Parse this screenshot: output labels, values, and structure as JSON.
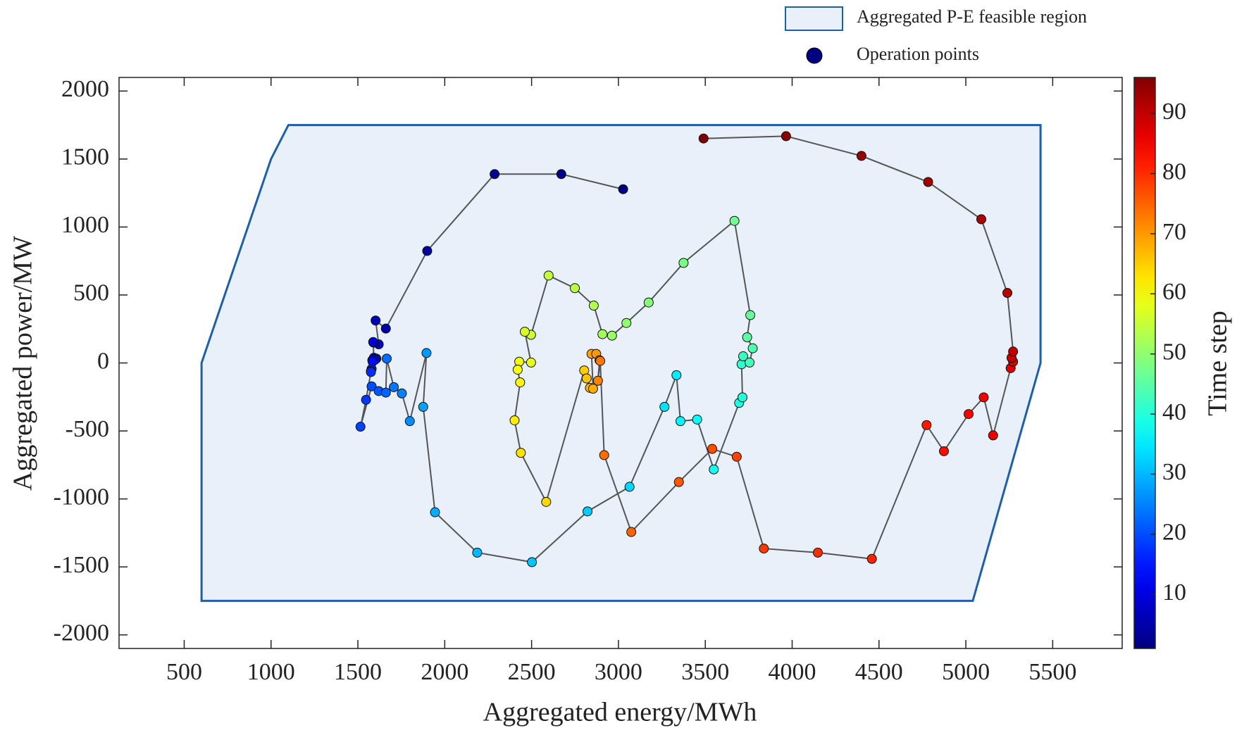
{
  "chart_data": {
    "type": "scatter",
    "xlabel": "Aggregated energy/MWh",
    "ylabel": "Aggregated power/MW",
    "xlim": [
      125,
      5900
    ],
    "ylim": [
      -2100,
      2100
    ],
    "xticks": [
      500,
      1000,
      1500,
      2000,
      2500,
      3000,
      3500,
      4000,
      4500,
      5000,
      5500
    ],
    "yticks": [
      -2000,
      -1500,
      -1000,
      -500,
      0,
      500,
      1000,
      1500,
      2000
    ],
    "region": {
      "name": "Aggregated P-E feasible region",
      "fill": "#e8f0f9",
      "color": "#1f5fa8",
      "x": [
        600,
        1000,
        1100,
        5430,
        5430,
        5040,
        600
      ],
      "y": [
        0,
        1500,
        1750,
        1750,
        0,
        -1750,
        -1750
      ]
    },
    "series": [
      {
        "name": "Operation points",
        "line_color": "#555555",
        "x": [
          3027,
          2671,
          2287,
          1899,
          1661,
          1602,
          1620,
          1590,
          1588,
          1592,
          1606,
          1600,
          1583,
          1585,
          1579,
          1575,
          1575,
          1547,
          1515,
          1579,
          1620,
          1661,
          1666,
          1707,
          1753,
          1799,
          1895,
          1876,
          1944,
          2187,
          2502,
          2822,
          3064,
          3265,
          3334,
          3357,
          3453,
          3549,
          3695,
          3714,
          3709,
          3718,
          3755,
          3773,
          3741,
          3759,
          3668,
          3375,
          3174,
          3046,
          2963,
          2908,
          2858,
          2749,
          2598,
          2497,
          2461,
          2497,
          2429,
          2420,
          2434,
          2402,
          2438,
          2584,
          2803,
          2817,
          2836,
          2854,
          2845,
          2872,
          2891,
          2882,
          2895,
          2918,
          3074,
          3348,
          3540,
          3681,
          3837,
          4148,
          4459,
          4774,
          4874,
          5016,
          5103,
          5157,
          5258,
          5272,
          5263,
          5272,
          5239,
          5089,
          4783,
          4399,
          3965,
          3490
        ],
        "y": [
          1278,
          1389,
          1389,
          824,
          253,
          312,
          137,
          150,
          154,
          38,
          32,
          25,
          20,
          10,
          -44,
          -60,
          -67,
          -271,
          -469,
          -172,
          -207,
          -218,
          32,
          -178,
          -224,
          -428,
          73,
          -323,
          -1098,
          -1395,
          -1465,
          -1092,
          -911,
          -323,
          -90,
          -428,
          -416,
          -783,
          -294,
          -253,
          -9,
          49,
          3,
          108,
          189,
          352,
          1045,
          736,
          445,
          294,
          201,
          212,
          422,
          550,
          643,
          207,
          230,
          3,
          9,
          -49,
          -143,
          -422,
          -661,
          -1022,
          -55,
          -114,
          -183,
          -189,
          67,
          67,
          20,
          -131,
          15,
          -678,
          -1243,
          -876,
          -632,
          -690,
          -1365,
          -1395,
          -1441,
          -457,
          -649,
          -376,
          -253,
          -533,
          -38,
          9,
          38,
          84,
          515,
          1057,
          1331,
          1523,
          1668,
          1651
        ]
      }
    ],
    "colorbar": {
      "label": "Time step",
      "colormap": "jet",
      "clim": [
        1,
        96
      ],
      "ticks": [
        10,
        20,
        30,
        40,
        50,
        60,
        70,
        80,
        90
      ]
    }
  }
}
